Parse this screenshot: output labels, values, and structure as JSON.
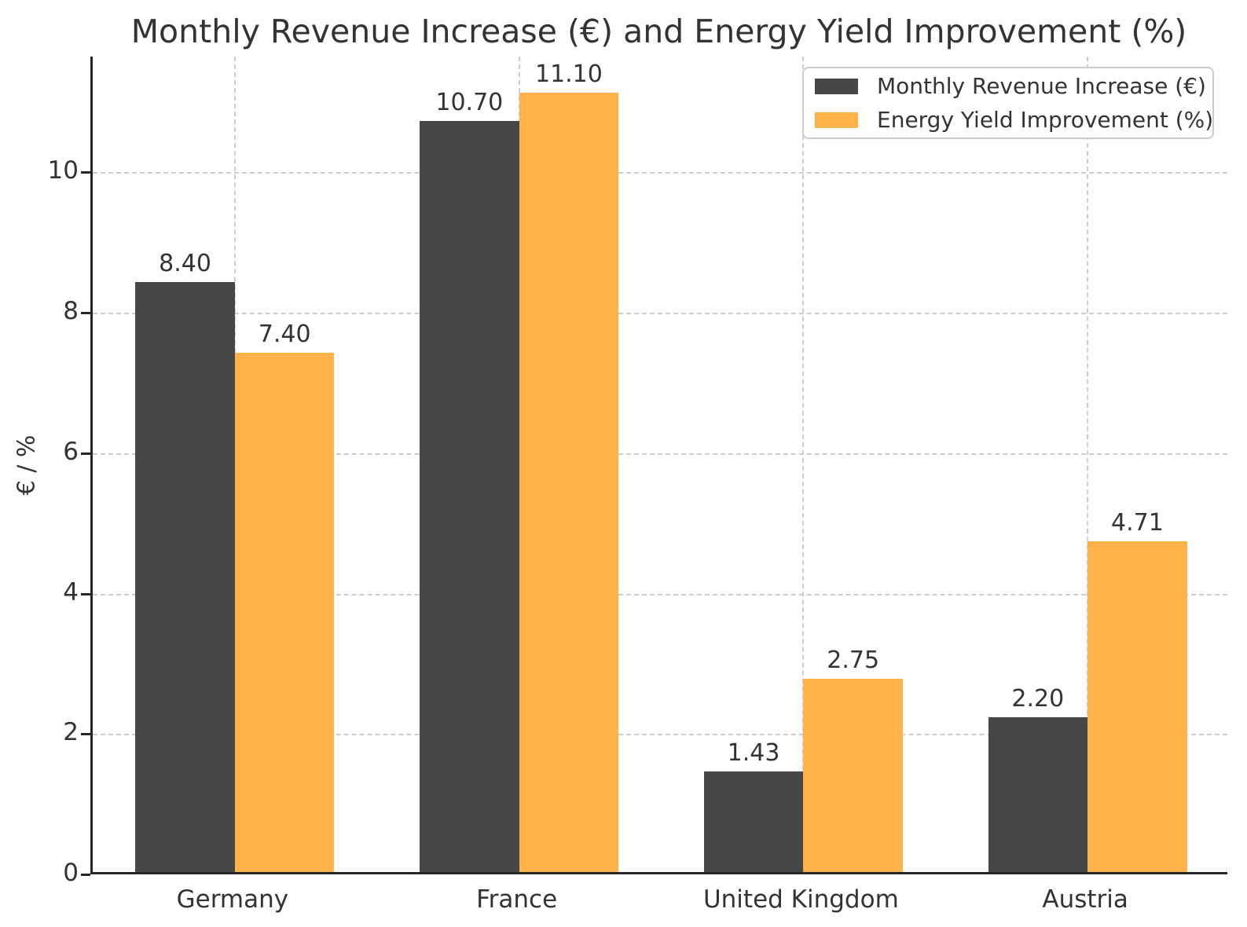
{
  "title": "Monthly Revenue Increase (€) and Energy Yield Improvement (%)",
  "chart_data": {
    "type": "bar",
    "title": "Monthly Revenue Increase (€) and Energy Yield Improvement (%)",
    "categories": [
      "Germany",
      "France",
      "United Kingdom",
      "Austria"
    ],
    "series": [
      {
        "name": "Monthly Revenue Increase (€)",
        "color": "#474747",
        "values": [
          8.4,
          10.7,
          1.43,
          2.2
        ]
      },
      {
        "name": "Energy Yield Improvement (%)",
        "color": "#FFB24A",
        "values": [
          7.4,
          11.1,
          2.75,
          4.71
        ]
      }
    ],
    "xlabel": "",
    "ylabel": "€ / %",
    "ylim": [
      0,
      11.65
    ],
    "yticks": [
      0,
      2,
      4,
      6,
      8,
      10
    ],
    "grid": true,
    "grid_style": "dashed",
    "legend_position": "upper right",
    "value_label_decimals": 2,
    "bar_width_fraction": 0.35,
    "colors": {
      "revenue_bar": "#474747",
      "yield_bar": "#FFB24A",
      "gridline": "#cdcdcd",
      "axis": "#262626",
      "text": "#333333"
    }
  }
}
